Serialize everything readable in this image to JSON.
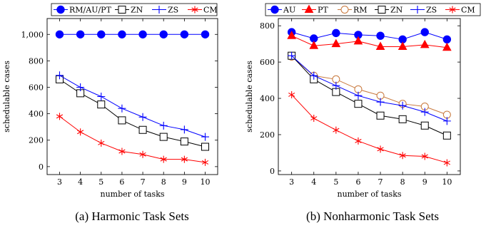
{
  "chart_data": [
    {
      "type": "line",
      "caption": "(a) Harmonic Task Sets",
      "xlabel": "number of tasks",
      "ylabel": "schedulable cases",
      "x": [
        3,
        4,
        5,
        6,
        7,
        8,
        9,
        10
      ],
      "xlim": [
        2.4,
        10.6
      ],
      "ylim": [
        -60,
        1120
      ],
      "yticks": [
        0,
        200,
        400,
        600,
        800,
        1000
      ],
      "ytick_labels": [
        "0",
        "200",
        "400",
        "600",
        "800",
        "1,000"
      ],
      "grid": false,
      "legend": "top",
      "series": [
        {
          "name": "RM/AU/PT",
          "color": "#0000ff",
          "marker": "circle-filled",
          "values": [
            1000,
            1000,
            1000,
            1000,
            1000,
            1000,
            1000,
            1000
          ]
        },
        {
          "name": "ZN",
          "color": "#000000",
          "marker": "square-open",
          "values": [
            660,
            555,
            470,
            350,
            278,
            225,
            190,
            150
          ]
        },
        {
          "name": "ZS",
          "color": "#0000ff",
          "marker": "plus",
          "values": [
            690,
            600,
            530,
            440,
            375,
            310,
            280,
            225
          ]
        },
        {
          "name": "CM",
          "color": "#ff0000",
          "marker": "asterisk",
          "values": [
            380,
            262,
            178,
            115,
            92,
            55,
            55,
            32
          ]
        }
      ]
    },
    {
      "type": "line",
      "caption": "(b) Nonharmonic Task Sets",
      "xlabel": "number of tasks",
      "ylabel": "schedulable cases",
      "x": [
        3,
        4,
        5,
        6,
        7,
        8,
        9,
        10
      ],
      "xlim": [
        2.4,
        10.6
      ],
      "ylim": [
        -20,
        840
      ],
      "yticks": [
        0,
        200,
        400,
        600,
        800
      ],
      "ytick_labels": [
        "0",
        "200",
        "400",
        "600",
        "800"
      ],
      "grid": false,
      "legend": "top",
      "series": [
        {
          "name": "AU",
          "color": "#0000ff",
          "marker": "circle-filled",
          "values": [
            765,
            730,
            760,
            750,
            745,
            725,
            765,
            725
          ]
        },
        {
          "name": "PT",
          "color": "#ff0000",
          "marker": "triangle-filled",
          "values": [
            745,
            690,
            700,
            715,
            685,
            685,
            695,
            680
          ]
        },
        {
          "name": "RM",
          "color": "#c8783c",
          "marker": "circle-open",
          "values": [
            630,
            525,
            505,
            450,
            415,
            370,
            355,
            310
          ]
        },
        {
          "name": "ZN",
          "color": "#000000",
          "marker": "square-open",
          "values": [
            635,
            505,
            435,
            370,
            305,
            285,
            250,
            195
          ]
        },
        {
          "name": "ZS",
          "color": "#0000ff",
          "marker": "plus",
          "values": [
            635,
            525,
            470,
            415,
            380,
            360,
            325,
            275
          ]
        },
        {
          "name": "CM",
          "color": "#ff0000",
          "marker": "asterisk",
          "values": [
            420,
            290,
            225,
            165,
            120,
            85,
            80,
            45
          ]
        }
      ]
    }
  ]
}
